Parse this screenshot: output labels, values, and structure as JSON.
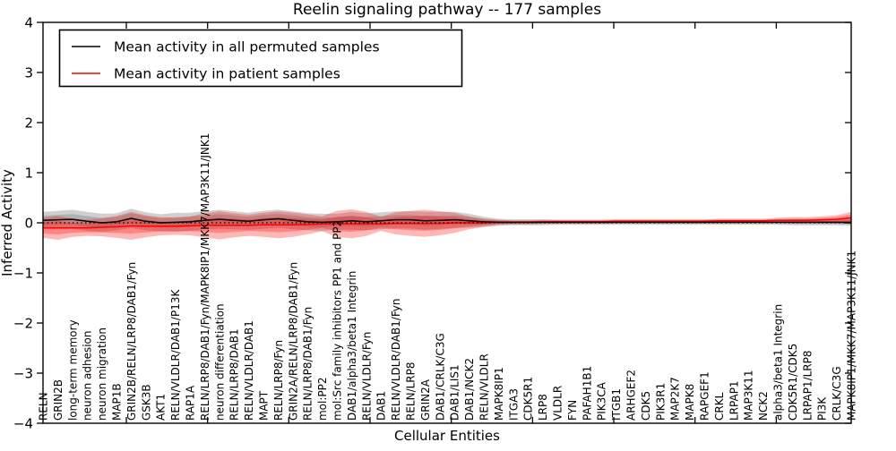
{
  "chart_data": {
    "type": "line",
    "title": "Reelin signaling pathway -- 177 samples",
    "xlabel": "Cellular Entities",
    "ylabel": "Inferred Activity",
    "ylim": [
      -4,
      4
    ],
    "yticks": [
      -4,
      -3,
      -2,
      -1,
      0,
      1,
      2,
      3,
      4
    ],
    "grid": false,
    "legend_position": "upper left",
    "zero_line": "black dotted line at y=0",
    "categories": [
      "RELN",
      "GRIN2B",
      "long-term memory",
      "neuron adhesion",
      "neuron migration",
      "MAP1B",
      "GRIN2B/RELN/LRP8/DAB1/Fyn",
      "GSK3B",
      "AKT1",
      "RELN/VLDLR/DAB1/P13K",
      "RAP1A",
      "RELN/LRP8/DAB1/Fyn/MAPK8IP1/MKK7/MAP3K11/JNK1",
      "neuron differentiation",
      "RELN/LRP8/DAB1",
      "RELN/VLDLR/DAB1",
      "MAPT",
      "RELN/LRP8/Fyn",
      "GRIN2A/RELN/LRP8/DAB1/Fyn",
      "RELN/LRP8/DAB1/Fyn",
      "mol:PP2",
      "mol:Src family inhibitors PP1 and PP2",
      "DAB1/alpha3/beta1 Integrin",
      "RELN/VLDLR/Fyn",
      "DAB1",
      "RELN/VLDLR/DAB1/Fyn",
      "RELN/LRP8",
      "GRIN2A",
      "DAB1/CRLK/C3G",
      "DAB1/LIS1",
      "DAB1/NCK2",
      "RELN/VLDLR",
      "MAPK8IP1",
      "ITGA3",
      "CDK5R1",
      "LRP8",
      "VLDLR",
      "FYN",
      "PAFAH1B1",
      "PIK3CA",
      "ITGB1",
      "ARHGEF2",
      "CDK5",
      "PIK3R1",
      "MAP2K7",
      "MAPK8",
      "RAPGEF1",
      "CRKL",
      "LRPAP1",
      "MAP3K11",
      "NCK2",
      "alpha3/beta1 Integrin",
      "CDK5R1/CDK5",
      "LRPAP1/LRP8",
      "PI3K",
      "CRLK/C3G",
      "MAPK8IP1/MKK7/MAP3K11/JNK1"
    ],
    "series": [
      {
        "name": "Mean activity in all permuted samples",
        "color": "#000000",
        "style": "solid",
        "values": [
          0.05,
          0.06,
          0.07,
          0.03,
          0,
          0.02,
          0.09,
          0.03,
          0,
          0.01,
          0.02,
          0.05,
          0.07,
          0.05,
          0.03,
          0.06,
          0.08,
          0.05,
          0.02,
          0.01,
          0.02,
          0.04,
          0.02,
          0.04,
          0.06,
          0.06,
          0.04,
          0.05,
          0.06,
          0.04,
          0.02,
          0.01,
          0.01,
          0.01,
          0.01,
          0.01,
          0.01,
          0.01,
          0.01,
          0.01,
          0.01,
          0.01,
          0.01,
          0.01,
          0.01,
          0.01,
          0.01,
          0.01,
          0.01,
          0.01,
          0.01,
          0.01,
          0.01,
          0.01,
          0.01,
          0.01
        ],
        "band_halfwidth": [
          0.17,
          0.18,
          0.19,
          0.19,
          0.18,
          0.17,
          0.19,
          0.18,
          0.17,
          0.19,
          0.18,
          0.18,
          0.19,
          0.18,
          0.17,
          0.18,
          0.18,
          0.18,
          0.17,
          0.17,
          0.16,
          0.18,
          0.17,
          0.17,
          0.17,
          0.17,
          0.18,
          0.17,
          0.16,
          0.14,
          0.1,
          0.07,
          0.06,
          0.06,
          0.06,
          0.05,
          0.05,
          0.05,
          0.05,
          0.05,
          0.05,
          0.05,
          0.05,
          0.05,
          0.05,
          0.05,
          0.05,
          0.05,
          0.05,
          0.05,
          0.05,
          0.06,
          0.06,
          0.06,
          0.06,
          0.07
        ],
        "band_color": "rgba(110,110,110,0.32)"
      },
      {
        "name": "Mean activity in patient samples",
        "color": "#ff0000",
        "style": "solid",
        "values": [
          -0.1,
          -0.1,
          -0.1,
          -0.1,
          -0.09,
          -0.08,
          -0.06,
          -0.07,
          -0.07,
          -0.07,
          -0.06,
          -0.05,
          -0.05,
          -0.05,
          -0.05,
          -0.04,
          -0.04,
          -0.04,
          -0.03,
          -0.02,
          -0.02,
          -0.02,
          -0.02,
          -0.02,
          -0.01,
          -0.01,
          -0.01,
          -0.01,
          0,
          0,
          0,
          0.01,
          0.01,
          0.01,
          0.02,
          0.02,
          0.02,
          0.02,
          0.02,
          0.03,
          0.03,
          0.03,
          0.03,
          0.03,
          0.03,
          0.03,
          0.04,
          0.04,
          0.04,
          0.04,
          0.05,
          0.05,
          0.05,
          0.06,
          0.07,
          0.1
        ],
        "band_halfwidth": [
          0.2,
          0.24,
          0.18,
          0.16,
          0.18,
          0.22,
          0.28,
          0.22,
          0.18,
          0.17,
          0.19,
          0.24,
          0.28,
          0.24,
          0.21,
          0.24,
          0.27,
          0.24,
          0.2,
          0.15,
          0.26,
          0.29,
          0.24,
          0.14,
          0.22,
          0.25,
          0.27,
          0.24,
          0.2,
          0.13,
          0.08,
          0.05,
          0.04,
          0.04,
          0.04,
          0.04,
          0.04,
          0.04,
          0.04,
          0.04,
          0.04,
          0.04,
          0.04,
          0.04,
          0.04,
          0.04,
          0.04,
          0.04,
          0.04,
          0.04,
          0.05,
          0.06,
          0.06,
          0.07,
          0.08,
          0.12
        ],
        "band_color": "rgba(255,0,0,0.28)"
      }
    ]
  }
}
